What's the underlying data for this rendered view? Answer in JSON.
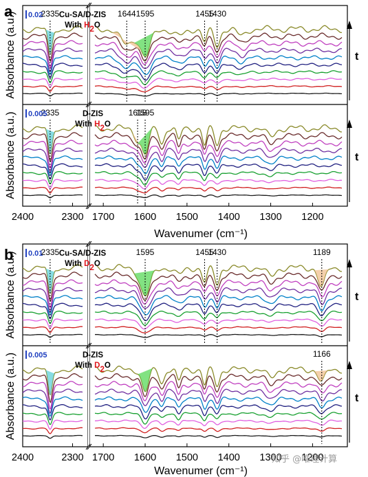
{
  "colors": {
    "series": [
      "#1c1c1c",
      "#d01f1f",
      "#e060e0",
      "#18a030",
      "#202080",
      "#0080c8",
      "#7030a0",
      "#c040c0",
      "#6a2c2c",
      "#8a8a2a"
    ],
    "cyan_fill": "#5fd0d8",
    "green_fill": "#58d858",
    "orange_fill": "#f0c090",
    "scale_text": "#1f3fbf",
    "subscript_red": "#e0161c"
  },
  "icons": {
    "arrow": "up-arrow-icon"
  },
  "watermark": "知乎 @唯理计算",
  "chart_data": [
    {
      "panel": "a",
      "type": "line",
      "xlabel": "Wavenumer (cm⁻¹)",
      "ylabel": "Absorbance (a.u.)",
      "x_ticks_left": [
        "2400",
        "2300"
      ],
      "x_ticks_right": [
        "1700",
        "1600",
        "1500",
        "1400",
        "1300",
        "1200"
      ],
      "xlim_left": [
        2400,
        2280
      ],
      "xlim_right": [
        1720,
        1130
      ],
      "axis_break": true,
      "time_label": "t",
      "subplots": [
        {
          "name": "top",
          "scale_bar": "0.02",
          "sample": "Cu-SA/D-ZIS",
          "condition_prefix": "With ",
          "condition_sub": "H",
          "subscript": "2",
          "condition_suffix": "O",
          "n_series": 10,
          "peaks": [
            {
              "label": "2335",
              "x": 2345
            },
            {
              "label": "1644",
              "x": 1644
            },
            {
              "label": "1595",
              "x": 1600
            },
            {
              "label": "1455",
              "x": 1458
            },
            {
              "label": "1430",
              "x": 1428
            }
          ],
          "bands": [
            {
              "center": 2345,
              "width": 4,
              "depth": 1.0
            },
            {
              "center": 1644,
              "width": 16,
              "depth": 0.55
            },
            {
              "center": 1600,
              "width": 12,
              "depth": 1.0
            },
            {
              "center": 1458,
              "width": 6,
              "depth": 0.45
            },
            {
              "center": 1428,
              "width": 7,
              "depth": 0.6
            },
            {
              "center": 1520,
              "width": 14,
              "depth": 0.25
            },
            {
              "center": 1370,
              "width": 10,
              "depth": 0.25
            }
          ]
        },
        {
          "name": "bottom",
          "scale_bar": "0.005",
          "sample": "D-ZIS",
          "condition_prefix": "With ",
          "condition_sub": "H",
          "subscript": "2",
          "condition_suffix": "O",
          "n_series": 10,
          "peaks": [
            {
              "label": "1618",
              "x": 1618
            },
            {
              "label": "1595",
              "x": 1600
            },
            {
              "label": "2335",
              "x": 2345
            }
          ],
          "bands": [
            {
              "center": 2345,
              "width": 4,
              "depth": 1.0
            },
            {
              "center": 1618,
              "width": 8,
              "depth": 0.35
            },
            {
              "center": 1600,
              "width": 8,
              "depth": 0.9
            },
            {
              "center": 1560,
              "width": 6,
              "depth": 0.5
            },
            {
              "center": 1520,
              "width": 5,
              "depth": 0.45
            },
            {
              "center": 1458,
              "width": 5,
              "depth": 0.6
            },
            {
              "center": 1428,
              "width": 6,
              "depth": 0.55
            },
            {
              "center": 1300,
              "width": 10,
              "depth": 0.3
            }
          ]
        }
      ]
    },
    {
      "panel": "b",
      "type": "line",
      "xlabel": "Wavenumer (cm⁻¹)",
      "ylabel": "Absorbance (a.u.)",
      "x_ticks_left": [
        "2400",
        "2300"
      ],
      "x_ticks_right": [
        "1700",
        "1600",
        "1500",
        "1400",
        "1300",
        "1200"
      ],
      "xlim_left": [
        2400,
        2280
      ],
      "xlim_right": [
        1720,
        1130
      ],
      "axis_break": true,
      "time_label": "t",
      "subplots": [
        {
          "name": "top",
          "scale_bar": "0.01",
          "sample": "Cu-SA/D-ZIS",
          "condition_prefix": "With ",
          "condition_sub": "D",
          "subscript": "2",
          "condition_suffix": "O",
          "n_series": 10,
          "peaks": [
            {
              "label": "2335",
              "x": 2345
            },
            {
              "label": "1595",
              "x": 1600
            },
            {
              "label": "1455",
              "x": 1458
            },
            {
              "label": "1430",
              "x": 1428
            },
            {
              "label": "1189",
              "x": 1178
            }
          ],
          "bands": [
            {
              "center": 2345,
              "width": 4,
              "depth": 1.0
            },
            {
              "center": 1600,
              "width": 12,
              "depth": 1.0
            },
            {
              "center": 1458,
              "width": 6,
              "depth": 0.5
            },
            {
              "center": 1428,
              "width": 6,
              "depth": 0.55
            },
            {
              "center": 1178,
              "width": 8,
              "depth": 0.7
            },
            {
              "center": 1520,
              "width": 10,
              "depth": 0.25
            },
            {
              "center": 1300,
              "width": 10,
              "depth": 0.3
            }
          ]
        },
        {
          "name": "bottom",
          "scale_bar": "0.005",
          "sample": "D-ZIS",
          "condition_prefix": "With ",
          "condition_sub": "D",
          "subscript": "2",
          "condition_suffix": "O",
          "n_series": 10,
          "peaks": [
            {
              "label": "1166",
              "x": 1178
            }
          ],
          "bands": [
            {
              "center": 2345,
              "width": 4,
              "depth": 1.0
            },
            {
              "center": 1600,
              "width": 8,
              "depth": 0.8
            },
            {
              "center": 1560,
              "width": 6,
              "depth": 0.45
            },
            {
              "center": 1520,
              "width": 5,
              "depth": 0.45
            },
            {
              "center": 1458,
              "width": 5,
              "depth": 0.55
            },
            {
              "center": 1428,
              "width": 6,
              "depth": 0.55
            },
            {
              "center": 1300,
              "width": 10,
              "depth": 0.3
            },
            {
              "center": 1178,
              "width": 8,
              "depth": 0.45
            }
          ]
        }
      ]
    }
  ]
}
